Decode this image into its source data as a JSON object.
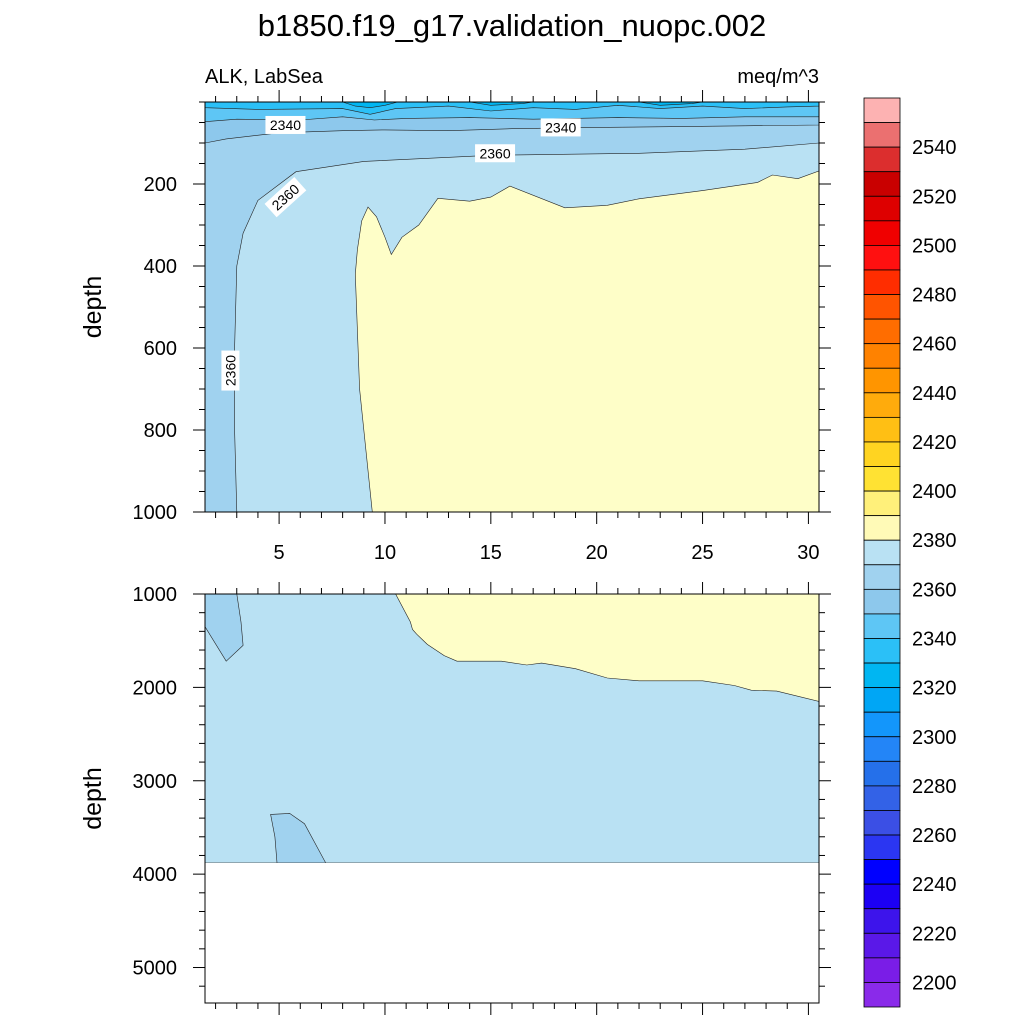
{
  "chart_data": {
    "type": "heatmap",
    "title": "b1850.f19_g17.validation_nuopc.002",
    "subtitle_left": "ALK, LabSea",
    "subtitle_right": "meq/m^3",
    "panels": [
      {
        "name": "upper",
        "ylabel": "depth",
        "ylim": [
          1000,
          0
        ],
        "yticks": [
          200,
          400,
          600,
          800,
          1000
        ],
        "xlim": [
          1.5,
          30.5
        ],
        "xticks": [
          5,
          10,
          15,
          20,
          25,
          30
        ],
        "contour_labels": [
          {
            "text": "2340",
            "x": 5.3,
            "y": 56
          },
          {
            "text": "2340",
            "x": 18.3,
            "y": 62
          },
          {
            "text": "2360",
            "x": 15.2,
            "y": 125
          },
          {
            "text": "2360",
            "x": 5.3,
            "y": 232
          },
          {
            "text": "2360",
            "x": 2.7,
            "y": 655
          }
        ],
        "regions": [
          {
            "value": 2350,
            "color": "#a0d2ef",
            "points": [
              [
                1.5,
                0
              ],
              [
                30.5,
                0
              ],
              [
                30.5,
                1000
              ],
              [
                1.5,
                1000
              ]
            ]
          },
          {
            "value": 2365,
            "color": "#b9e1f3",
            "points": [
              [
                30.5,
                100
              ],
              [
                30.5,
                1000
              ],
              [
                3,
                1000
              ],
              [
                2.9,
                800
              ],
              [
                2.9,
                600
              ],
              [
                3,
                400
              ],
              [
                3.3,
                320
              ],
              [
                4,
                240
              ],
              [
                5.8,
                170
              ],
              [
                9,
                145
              ],
              [
                15,
                130
              ],
              [
                22,
                125
              ],
              [
                27,
                115
              ]
            ]
          },
          {
            "value": 2380,
            "color": "#fefec8",
            "points": [
              [
                9.4,
                1000
              ],
              [
                8.8,
                700
              ],
              [
                8.6,
                420
              ],
              [
                8.7,
                360
              ],
              [
                8.9,
                290
              ],
              [
                9.2,
                256
              ],
              [
                9.6,
                280
              ],
              [
                10,
                330
              ],
              [
                10.3,
                372
              ],
              [
                10.8,
                330
              ],
              [
                11.6,
                300
              ],
              [
                12.5,
                235
              ],
              [
                14,
                242
              ],
              [
                15,
                232
              ],
              [
                15.9,
                205
              ],
              [
                18.5,
                258
              ],
              [
                20.5,
                252
              ],
              [
                22,
                236
              ],
              [
                25,
                216
              ],
              [
                27.6,
                196
              ],
              [
                28.3,
                178
              ],
              [
                29.5,
                187
              ],
              [
                30.5,
                168
              ],
              [
                30.5,
                1000
              ]
            ]
          },
          {
            "value": 2335,
            "color": "#8dc8ec",
            "points": [
              [
                1.5,
                100
              ],
              [
                2.5,
                90
              ],
              [
                5,
                75
              ],
              [
                8,
                70
              ],
              [
                10,
                68
              ],
              [
                13,
                70
              ],
              [
                16,
                65
              ],
              [
                20,
                62
              ],
              [
                24,
                60
              ],
              [
                27,
                58
              ],
              [
                30.5,
                56
              ],
              [
                30.5,
                0
              ],
              [
                1.5,
                0
              ]
            ]
          },
          {
            "value": 2325,
            "color": "#5ec6f5",
            "points": [
              [
                1.5,
                48
              ],
              [
                3,
                42
              ],
              [
                6,
                44
              ],
              [
                8,
                36
              ],
              [
                9.5,
                44
              ],
              [
                11,
                40
              ],
              [
                14,
                38
              ],
              [
                17,
                42
              ],
              [
                21,
                38
              ],
              [
                24,
                40
              ],
              [
                27,
                36
              ],
              [
                30.5,
                36
              ],
              [
                30.5,
                0
              ],
              [
                1.5,
                0
              ]
            ]
          },
          {
            "value": 2315,
            "color": "#2bc0f7",
            "points": [
              [
                1.5,
                14
              ],
              [
                4,
                18
              ],
              [
                8,
                16
              ],
              [
                9.3,
                30
              ],
              [
                10.5,
                16
              ],
              [
                13,
                10
              ],
              [
                15,
                22
              ],
              [
                17,
                14
              ],
              [
                19,
                18
              ],
              [
                21,
                8
              ],
              [
                23,
                16
              ],
              [
                25,
                10
              ],
              [
                27,
                16
              ],
              [
                29,
                12
              ],
              [
                30.5,
                10
              ],
              [
                30.5,
                0
              ],
              [
                1.5,
                0
              ]
            ]
          },
          {
            "value": 2305,
            "color": "#00b6f2",
            "points": [
              [
                8,
                0
              ],
              [
                8.6,
                10
              ],
              [
                9.3,
                14
              ],
              [
                10,
                8
              ],
              [
                10.6,
                0
              ]
            ]
          },
          {
            "value": 2305,
            "color": "#00b6f2",
            "points": [
              [
                14,
                0
              ],
              [
                15,
                8
              ],
              [
                16.5,
                4
              ],
              [
                17,
                0
              ]
            ]
          },
          {
            "value": 2305,
            "color": "#00b6f2",
            "points": [
              [
                22,
                0
              ],
              [
                23,
                8
              ],
              [
                24.5,
                4
              ],
              [
                25,
                0
              ]
            ]
          }
        ]
      },
      {
        "name": "lower",
        "ylabel": "depth",
        "ylim": [
          5380,
          1000
        ],
        "yticks": [
          1000,
          2000,
          3000,
          4000,
          5000
        ],
        "xlim": [
          1.5,
          30.5
        ],
        "xticks": [
          5,
          10,
          15,
          20,
          25,
          30
        ],
        "bottom_depth": 3880,
        "regions": [
          {
            "value": 2365,
            "color": "#b9e1f3",
            "points": [
              [
                1.5,
                1000
              ],
              [
                30.5,
                1000
              ],
              [
                30.5,
                3880
              ],
              [
                1.5,
                3880
              ]
            ]
          },
          {
            "value": 2355,
            "color": "#a0d2ef",
            "points": [
              [
                1.5,
                1000
              ],
              [
                3,
                1000
              ],
              [
                3.2,
                1300
              ],
              [
                3.3,
                1550
              ],
              [
                2.5,
                1720
              ],
              [
                1.5,
                1350
              ]
            ]
          },
          {
            "value": 2355,
            "color": "#a0d2ef",
            "points": [
              [
                4.9,
                3880
              ],
              [
                4.8,
                3600
              ],
              [
                4.6,
                3360
              ],
              [
                5.5,
                3350
              ],
              [
                6.2,
                3460
              ],
              [
                7.2,
                3880
              ]
            ]
          },
          {
            "value": 2380,
            "color": "#fefec8",
            "points": [
              [
                10.5,
                1000
              ],
              [
                30.5,
                1000
              ],
              [
                30.5,
                2150
              ],
              [
                28.5,
                2040
              ],
              [
                27.3,
                2030
              ],
              [
                26.5,
                1980
              ],
              [
                25,
                1930
              ],
              [
                22,
                1930
              ],
              [
                20.5,
                1900
              ],
              [
                19,
                1800
              ],
              [
                17.4,
                1740
              ],
              [
                16.7,
                1760
              ],
              [
                15.5,
                1720
              ],
              [
                13.4,
                1720
              ],
              [
                12.8,
                1660
              ],
              [
                12,
                1540
              ],
              [
                11.5,
                1430
              ],
              [
                11.3,
                1380
              ],
              [
                11.2,
                1300
              ],
              [
                10.5,
                1000
              ]
            ]
          }
        ]
      }
    ],
    "colorbar": {
      "labels": [
        "2540",
        "2520",
        "2500",
        "2480",
        "2460",
        "2440",
        "2420",
        "2400",
        "2380",
        "2360",
        "2340",
        "2320",
        "2300",
        "2280",
        "2260",
        "2240",
        "2220",
        "2200"
      ],
      "colors": [
        "#fdb2b2",
        "#eb7070",
        "#dc2e2e",
        "#c90000",
        "#de0000",
        "#f00000",
        "#ff1010",
        "#ff2d00",
        "#ff5400",
        "#ff6d00",
        "#ff8200",
        "#ff9500",
        "#ffab0c",
        "#ffbf14",
        "#ffd421",
        "#ffe233",
        "#fff07a",
        "#fffab7",
        "#b9e1f3",
        "#a0d2ef",
        "#8dc8ec",
        "#5ec6f5",
        "#2bc0f7",
        "#00b6f2",
        "#00a6f5",
        "#1396fb",
        "#2385f7",
        "#2570ea",
        "#3362e7",
        "#3b4fe5",
        "#2b36f2",
        "#0000ff",
        "#1c00f4",
        "#3d14eb",
        "#5a18e8",
        "#7a1de7",
        "#8a2aea"
      ]
    }
  }
}
